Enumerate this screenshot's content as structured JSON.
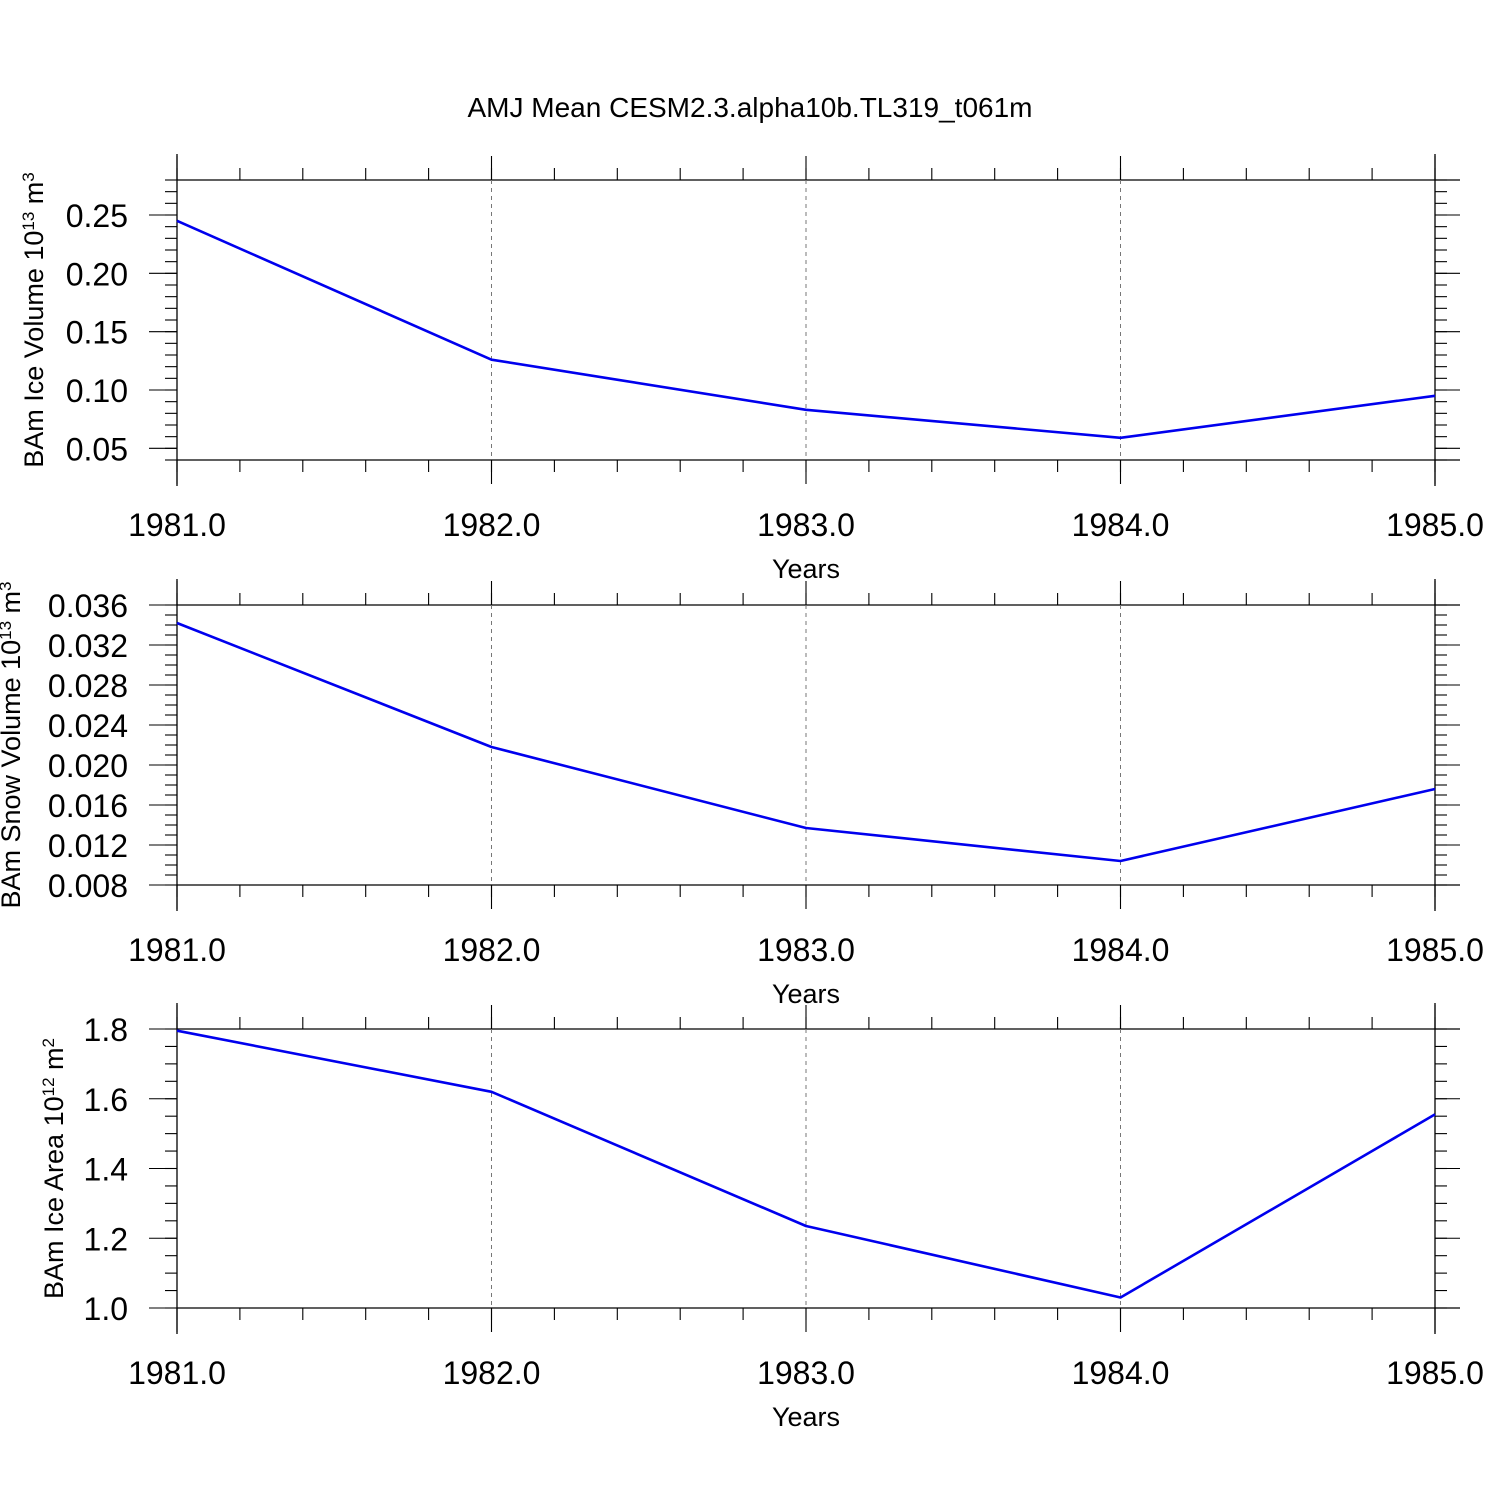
{
  "figure": {
    "title": "AMJ Mean CESM2.3.alpha10b.TL319_t061m"
  },
  "chart_data": [
    {
      "type": "line",
      "xlabel": "Years",
      "ylabel": {
        "text": "BAm Ice Volume 10",
        "exp": "13",
        "unit": " m",
        "unit_exp": "3"
      },
      "x": [
        1981,
        1982,
        1983,
        1984,
        1985
      ],
      "series": [
        {
          "values": [
            0.245,
            0.126,
            0.083,
            0.059,
            0.095
          ],
          "color": "#0000ee"
        }
      ],
      "xlim": [
        1981.0,
        1985.0
      ],
      "ylim": [
        0.04,
        0.28
      ],
      "xticks": [
        "1981.0",
        "1982.0",
        "1983.0",
        "1984.0",
        "1985.0"
      ],
      "yticks": [
        "0.05",
        "0.10",
        "0.15",
        "0.20",
        "0.25"
      ],
      "ytick_values": [
        0.05,
        0.1,
        0.15,
        0.2,
        0.25
      ],
      "y_minor_step": 0.01,
      "grid": "vertical-dashed"
    },
    {
      "type": "line",
      "xlabel": "Years",
      "ylabel": {
        "text": "BAm Snow Volume 10",
        "exp": "13",
        "unit": " m",
        "unit_exp": "3"
      },
      "x": [
        1981,
        1982,
        1983,
        1984,
        1985
      ],
      "series": [
        {
          "values": [
            0.0342,
            0.0218,
            0.0137,
            0.0104,
            0.0176
          ],
          "color": "#0000ee"
        }
      ],
      "xlim": [
        1981.0,
        1985.0
      ],
      "ylim": [
        0.008,
        0.036
      ],
      "xticks": [
        "1981.0",
        "1982.0",
        "1983.0",
        "1984.0",
        "1985.0"
      ],
      "yticks": [
        "0.008",
        "0.012",
        "0.016",
        "0.020",
        "0.024",
        "0.028",
        "0.032",
        "0.036"
      ],
      "ytick_values": [
        0.008,
        0.012,
        0.016,
        0.02,
        0.024,
        0.028,
        0.032,
        0.036
      ],
      "y_minor_step": 0.001,
      "grid": "vertical-dashed"
    },
    {
      "type": "line",
      "xlabel": "Years",
      "ylabel": {
        "text": "BAm Ice Area 10",
        "exp": "12",
        "unit": " m",
        "unit_exp": "2"
      },
      "x": [
        1981,
        1982,
        1983,
        1984,
        1985
      ],
      "series": [
        {
          "values": [
            1.795,
            1.62,
            1.235,
            1.03,
            1.555
          ],
          "color": "#0000ee"
        }
      ],
      "xlim": [
        1981.0,
        1985.0
      ],
      "ylim": [
        1.0,
        1.8
      ],
      "xticks": [
        "1981.0",
        "1982.0",
        "1983.0",
        "1984.0",
        "1985.0"
      ],
      "yticks": [
        "1.0",
        "1.2",
        "1.4",
        "1.6",
        "1.8"
      ],
      "ytick_values": [
        1.0,
        1.2,
        1.4,
        1.6,
        1.8
      ],
      "y_minor_step": 0.05,
      "grid": "vertical-dashed"
    }
  ]
}
